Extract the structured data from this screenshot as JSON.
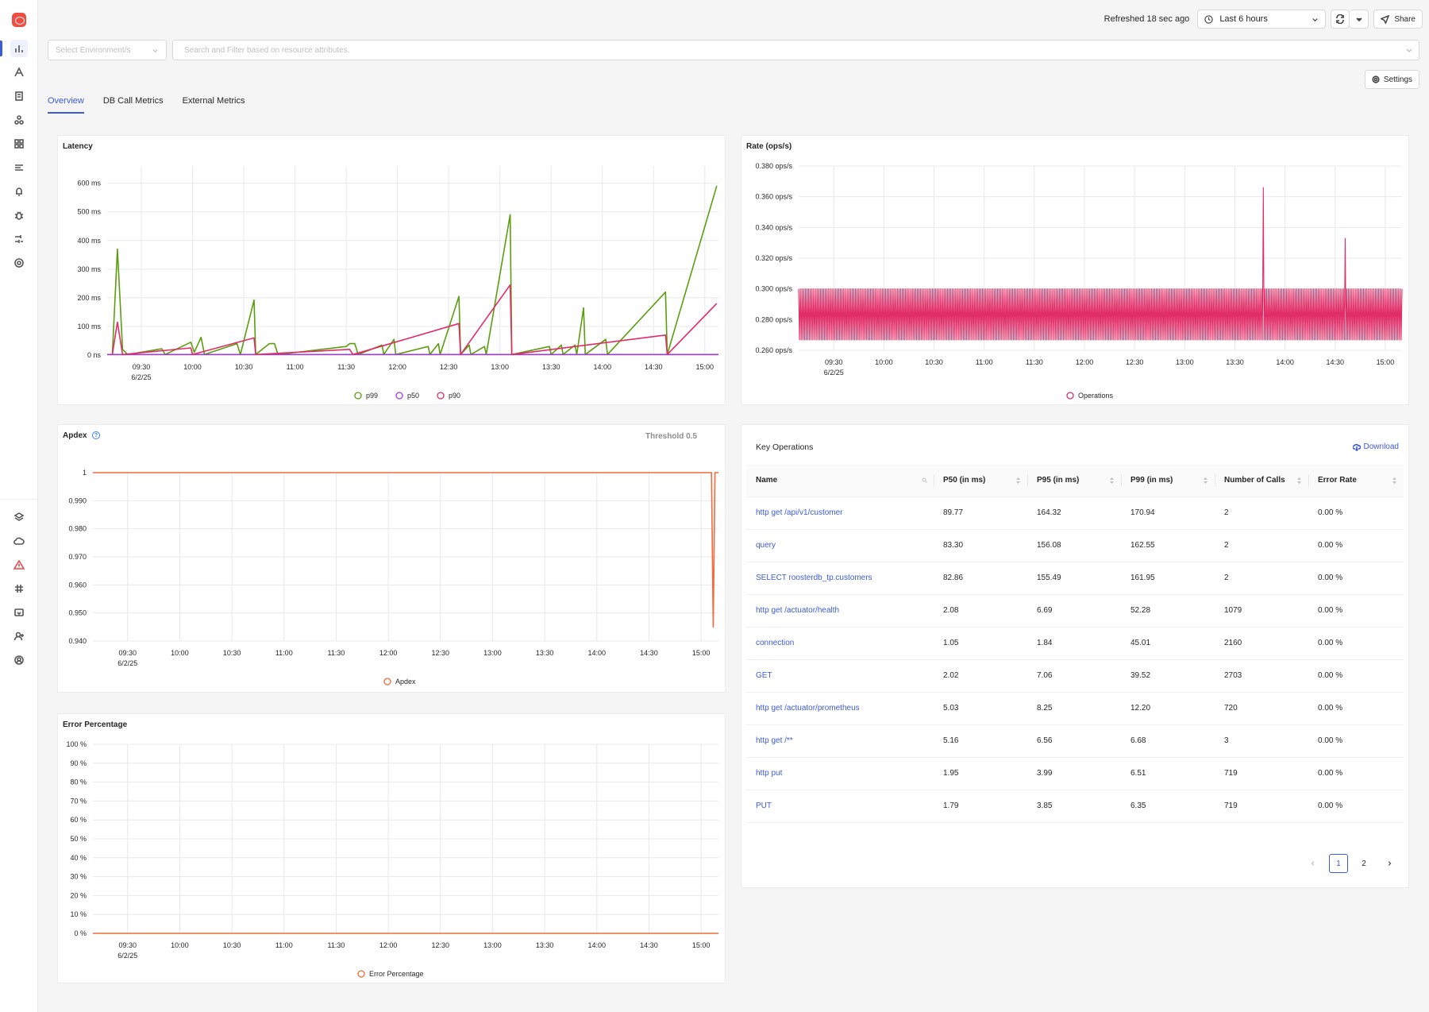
{
  "topbar": {
    "refreshed": "Refreshed 18 sec ago",
    "time_range": "Last 6 hours",
    "share_label": "Share"
  },
  "filters": {
    "env_placeholder": "Select Environment/s",
    "search_placeholder": "Search and Filter based on resource attributes."
  },
  "settings_label": "Settings",
  "tabs": [
    {
      "label": "Overview",
      "active": true
    },
    {
      "label": "DB Call Metrics",
      "active": false
    },
    {
      "label": "External Metrics",
      "active": false
    }
  ],
  "sidebar": {
    "icons": [
      "services-icon",
      "traces-icon",
      "logs-icon",
      "infra-icon",
      "dashboards-icon",
      "messaging-icon",
      "alerts-bell-icon",
      "exceptions-bug-icon",
      "integrations-icon",
      "settings-icon"
    ],
    "bottom_icons": [
      "layers-icon",
      "cloud-icon",
      "alert-triangle-icon",
      "slack-icon",
      "help-icon",
      "invite-user-icon",
      "user-account-icon"
    ]
  },
  "latency": {
    "title": "Latency",
    "legend": [
      {
        "name": "p99",
        "color": "#5a9e0f"
      },
      {
        "name": "p50",
        "color": "#a23cdb"
      },
      {
        "name": "p90",
        "color": "#e02d66"
      }
    ]
  },
  "rate": {
    "title": "Rate (ops/s)",
    "legend": [
      {
        "name": "Operations",
        "color": "#e02d66"
      }
    ]
  },
  "apdex": {
    "title": "Apdex",
    "threshold": "Threshold 0.5",
    "legend": [
      {
        "name": "Apdex",
        "color": "#f26a3d"
      }
    ]
  },
  "errors": {
    "title": "Error Percentage",
    "legend": [
      {
        "name": "Error Percentage",
        "color": "#f26a3d"
      }
    ]
  },
  "key_operations": {
    "title": "Key Operations",
    "download_label": "Download",
    "columns": [
      "Name",
      "P50 (in ms)",
      "P95 (in ms)",
      "P99 (in ms)",
      "Number of Calls",
      "Error Rate"
    ],
    "rows": [
      [
        "http get /api/v1/customer",
        "89.77",
        "164.32",
        "170.94",
        "2",
        "0.00 %"
      ],
      [
        "query",
        "83.30",
        "156.08",
        "162.55",
        "2",
        "0.00 %"
      ],
      [
        "SELECT roosterdb_tp.customers",
        "82.86",
        "155.49",
        "161.95",
        "2",
        "0.00 %"
      ],
      [
        "http get /actuator/health",
        "2.08",
        "6.69",
        "52.28",
        "1079",
        "0.00 %"
      ],
      [
        "connection",
        "1.05",
        "1.84",
        "45.01",
        "2160",
        "0.00 %"
      ],
      [
        "GET",
        "2.02",
        "7.06",
        "39.52",
        "2703",
        "0.00 %"
      ],
      [
        "http get /actuator/prometheus",
        "5.03",
        "8.25",
        "12.20",
        "720",
        "0.00 %"
      ],
      [
        "http get /**",
        "5.16",
        "6.56",
        "6.68",
        "3",
        "0.00 %"
      ],
      [
        "http put",
        "1.95",
        "3.99",
        "6.51",
        "719",
        "0.00 %"
      ],
      [
        "PUT",
        "1.79",
        "3.85",
        "6.35",
        "719",
        "0.00 %"
      ]
    ],
    "pages": [
      "1",
      "2"
    ],
    "current_page": "1"
  },
  "chart_data": [
    {
      "type": "line",
      "title": "Latency",
      "x_ticks": [
        "09:30",
        "10:00",
        "10:30",
        "11:00",
        "11:30",
        "12:00",
        "12:30",
        "13:00",
        "13:30",
        "14:00",
        "14:30",
        "15:00"
      ],
      "x_sub": "6/2/25",
      "x_range": [
        "09:10",
        "15:08"
      ],
      "y_ticks": [
        "0 ns",
        "100 ms",
        "200 ms",
        "300 ms",
        "400 ms",
        "500 ms",
        "600 ms"
      ],
      "ylim": [
        0,
        660
      ],
      "series": [
        {
          "name": "p99",
          "color": "#5a9e0f",
          "points": [
            [
              "09:13",
              2
            ],
            [
              "09:16",
              370
            ],
            [
              "09:19",
              20
            ],
            [
              "09:22",
              2
            ],
            [
              "09:42",
              22
            ],
            [
              "09:44",
              2
            ],
            [
              "09:59",
              45
            ],
            [
              "10:01",
              10
            ],
            [
              "10:05",
              62
            ],
            [
              "10:07",
              2
            ],
            [
              "10:26",
              40
            ],
            [
              "10:28",
              2
            ],
            [
              "10:36",
              192
            ],
            [
              "10:37",
              2
            ],
            [
              "10:45",
              40
            ],
            [
              "10:48",
              40
            ],
            [
              "10:50",
              2
            ],
            [
              "11:30",
              30
            ],
            [
              "11:32",
              40
            ],
            [
              "11:35",
              40
            ],
            [
              "11:37",
              2
            ],
            [
              "11:51",
              35
            ],
            [
              "11:52",
              2
            ],
            [
              "11:58",
              55
            ],
            [
              "11:59",
              2
            ],
            [
              "12:18",
              30
            ],
            [
              "12:19",
              2
            ],
            [
              "12:24",
              40
            ],
            [
              "12:25",
              2
            ],
            [
              "12:36",
              205
            ],
            [
              "12:37",
              2
            ],
            [
              "12:42",
              35
            ],
            [
              "12:43",
              2
            ],
            [
              "12:51",
              30
            ],
            [
              "12:52",
              2
            ],
            [
              "13:06",
              490
            ],
            [
              "13:07",
              2
            ],
            [
              "13:29",
              30
            ],
            [
              "13:30",
              2
            ],
            [
              "13:36",
              35
            ],
            [
              "13:37",
              2
            ],
            [
              "13:44",
              35
            ],
            [
              "13:45",
              2
            ],
            [
              "13:49",
              165
            ],
            [
              "13:50",
              2
            ],
            [
              "14:02",
              55
            ],
            [
              "14:03",
              2
            ],
            [
              "14:37",
              220
            ],
            [
              "14:38",
              2
            ],
            [
              "15:07",
              590
            ]
          ]
        },
        {
          "name": "p50",
          "color": "#a23cdb",
          "points": [
            [
              "09:10",
              2
            ],
            [
              "15:08",
              2
            ]
          ]
        },
        {
          "name": "p90",
          "color": "#e02d66",
          "points": [
            [
              "09:13",
              2
            ],
            [
              "09:16",
              115
            ],
            [
              "09:19",
              2
            ],
            [
              "09:59",
              25
            ],
            [
              "10:00",
              2
            ],
            [
              "10:36",
              60
            ],
            [
              "10:37",
              2
            ],
            [
              "11:32",
              20
            ],
            [
              "11:34",
              2
            ],
            [
              "12:36",
              110
            ],
            [
              "12:37",
              2
            ],
            [
              "13:06",
              245
            ],
            [
              "13:07",
              2
            ],
            [
              "14:37",
              70
            ],
            [
              "14:38",
              2
            ],
            [
              "15:07",
              180
            ]
          ]
        }
      ]
    },
    {
      "type": "line",
      "title": "Rate (ops/s)",
      "x_ticks": [
        "09:30",
        "10:00",
        "10:30",
        "11:00",
        "11:30",
        "12:00",
        "12:30",
        "13:00",
        "13:30",
        "14:00",
        "14:30",
        "15:00"
      ],
      "x_sub": "6/2/25",
      "x_range": [
        "09:09",
        "15:10"
      ],
      "y_ticks": [
        "0.260 ops/s",
        "0.280 ops/s",
        "0.300 ops/s",
        "0.320 ops/s",
        "0.340 ops/s",
        "0.360 ops/s",
        "0.380 ops/s"
      ],
      "ylim": [
        0.26,
        0.38
      ],
      "series": [
        {
          "name": "Operations",
          "color": "#e02d66",
          "oscillation": {
            "low": 0.2667,
            "high": 0.3,
            "period_min": 1
          },
          "spikes": [
            [
              "13:47",
              0.366
            ],
            [
              "14:36",
              0.333
            ]
          ]
        }
      ]
    },
    {
      "type": "line",
      "title": "Apdex",
      "x_ticks": [
        "09:30",
        "10:00",
        "10:30",
        "11:00",
        "11:30",
        "12:00",
        "12:30",
        "13:00",
        "13:30",
        "14:00",
        "14:30",
        "15:00"
      ],
      "x_sub": "6/2/25",
      "x_range": [
        "09:10",
        "15:10"
      ],
      "y_ticks": [
        "0.940",
        "0.950",
        "0.960",
        "0.970",
        "0.980",
        "0.990",
        "1"
      ],
      "ylim": [
        0.94,
        1.0
      ],
      "series": [
        {
          "name": "Apdex",
          "color": "#f26a3d",
          "points": [
            [
              "09:10",
              1
            ],
            [
              "15:06",
              1
            ],
            [
              "15:07",
              0.945
            ],
            [
              "15:08",
              1
            ],
            [
              "15:10",
              1
            ]
          ]
        }
      ]
    },
    {
      "type": "line",
      "title": "Error Percentage",
      "x_ticks": [
        "09:30",
        "10:00",
        "10:30",
        "11:00",
        "11:30",
        "12:00",
        "12:30",
        "13:00",
        "13:30",
        "14:00",
        "14:30",
        "15:00"
      ],
      "x_sub": "6/2/25",
      "x_range": [
        "09:10",
        "15:10"
      ],
      "y_ticks": [
        "0 %",
        "10 %",
        "20 %",
        "30 %",
        "40 %",
        "50 %",
        "60 %",
        "70 %",
        "80 %",
        "90 %",
        "100 %"
      ],
      "ylim": [
        0,
        100
      ],
      "series": [
        {
          "name": "Error Percentage",
          "color": "#f26a3d",
          "points": [
            [
              "09:10",
              0
            ],
            [
              "15:10",
              0
            ]
          ]
        }
      ]
    }
  ]
}
